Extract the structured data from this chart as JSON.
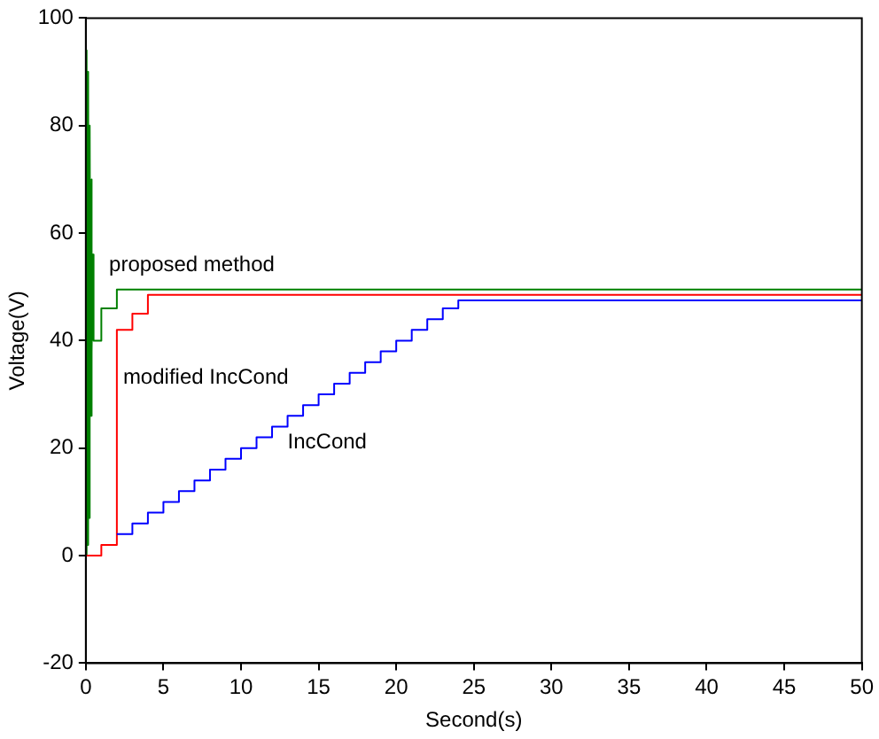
{
  "chart_data": {
    "type": "line",
    "xlabel": "Second(s)",
    "ylabel": "Voltage(V)",
    "xlim": [
      0,
      50
    ],
    "xticks": [
      0,
      5,
      10,
      15,
      20,
      25,
      30,
      35,
      40,
      45,
      50
    ],
    "ylim": [
      -20,
      100
    ],
    "yticks": [
      -20,
      0,
      20,
      40,
      60,
      80,
      100
    ],
    "grid": false,
    "legend": false,
    "marker": "none",
    "line_style": "solid",
    "series": [
      {
        "color": "#0000ff",
        "x": [
          2,
          3,
          3,
          4,
          4,
          5,
          5,
          6,
          6,
          7,
          7,
          8,
          8,
          9,
          9,
          10,
          10,
          11,
          11,
          12,
          12,
          13,
          13,
          14,
          14,
          15,
          15,
          16,
          16,
          17,
          17,
          18,
          18,
          19,
          19,
          20,
          20,
          21,
          21,
          22,
          22,
          23,
          23,
          24,
          24,
          50
        ],
        "values": [
          4,
          4,
          6,
          6,
          8,
          8,
          10,
          10,
          12,
          12,
          14,
          14,
          16,
          16,
          18,
          18,
          20,
          20,
          22,
          22,
          24,
          24,
          26,
          26,
          28,
          28,
          30,
          30,
          32,
          32,
          34,
          34,
          36,
          36,
          38,
          38,
          40,
          40,
          42,
          42,
          44,
          44,
          46,
          46,
          47.5,
          47.5
        ]
      },
      {
        "color": "#ff0000",
        "x": [
          0,
          1,
          1,
          2,
          2,
          3,
          3,
          4,
          4,
          50
        ],
        "values": [
          0,
          0,
          2,
          2,
          42,
          42,
          45,
          45,
          48.5,
          48.5
        ]
      },
      {
        "color": "#008000",
        "x": [
          0,
          0.05,
          0.1,
          0.15,
          0.2,
          0.25,
          0.3,
          0.35,
          0.4,
          0.45,
          0.5,
          1,
          1,
          2,
          2,
          50
        ],
        "values": [
          0,
          94,
          2,
          90,
          7,
          80,
          26,
          70,
          38,
          56,
          40,
          40,
          46,
          46,
          49.5,
          49.5
        ]
      }
    ],
    "annotations": [
      "proposed method",
      "modified IncCond",
      "IncCond"
    ]
  }
}
